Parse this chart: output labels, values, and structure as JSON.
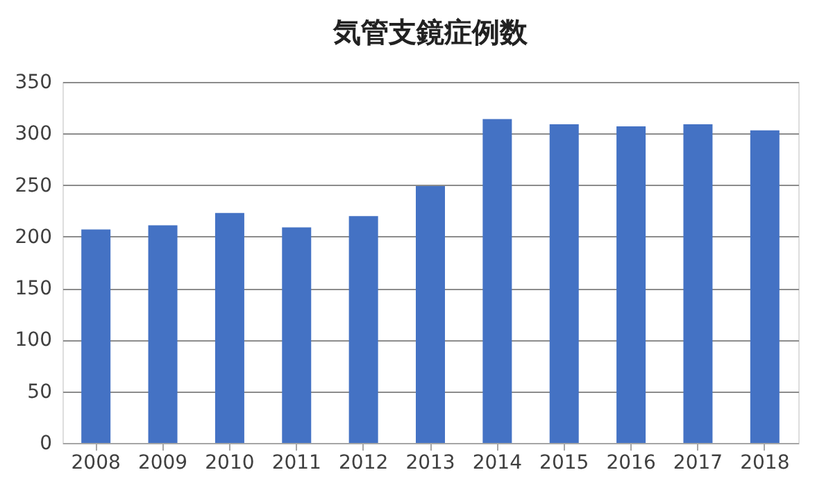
{
  "chart_data": {
    "type": "bar",
    "title": "気管支鏡症例数",
    "categories": [
      "2008",
      "2009",
      "2010",
      "2011",
      "2012",
      "2013",
      "2014",
      "2015",
      "2016",
      "2017",
      "2018"
    ],
    "values": [
      207,
      211,
      223,
      209,
      220,
      249,
      314,
      309,
      307,
      309,
      303
    ],
    "color": "#4472c4",
    "ylim": [
      0,
      350
    ],
    "yticks": [
      0,
      50,
      100,
      150,
      200,
      250,
      300,
      350
    ],
    "grid": "y"
  }
}
